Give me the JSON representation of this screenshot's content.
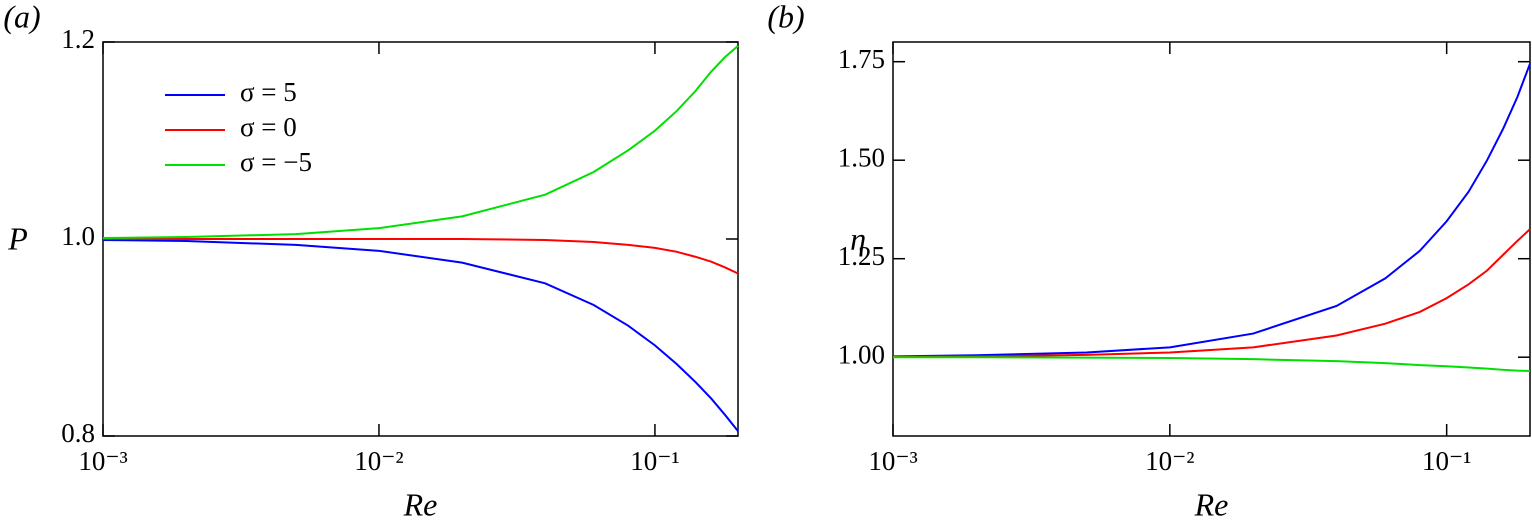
{
  "chart_data": [
    {
      "type": "line",
      "panel_label": "(a)",
      "xlabel": "Re",
      "ylabel": "P",
      "xscale": "log",
      "legend": "upper left",
      "xlim": [
        0.001,
        0.2
      ],
      "ylim": [
        0.8,
        1.2
      ],
      "xticks": [
        {
          "value": 0.001,
          "label": "10⁻³"
        },
        {
          "value": 0.01,
          "label": "10⁻²"
        },
        {
          "value": 0.1,
          "label": "10⁻¹"
        }
      ],
      "yticks": [
        0.8,
        {
          "value": 1,
          "label": "1.0"
        },
        1.2
      ],
      "x": [
        0.001,
        0.002,
        0.005,
        0.01,
        0.02,
        0.04,
        0.06,
        0.08,
        0.1,
        0.12,
        0.14,
        0.16,
        0.18,
        0.2
      ],
      "series": [
        {
          "name": "σ = 5",
          "color": "#0000ff",
          "values": [
            0.999,
            0.998,
            0.994,
            0.988,
            0.976,
            0.955,
            0.933,
            0.912,
            0.892,
            0.873,
            0.855,
            0.838,
            0.821,
            0.805
          ]
        },
        {
          "name": "σ = 0",
          "color": "#ff0000",
          "values": [
            1.0,
            1.0,
            1.0,
            1.0,
            1.0,
            0.999,
            0.997,
            0.994,
            0.991,
            0.987,
            0.982,
            0.977,
            0.971,
            0.965
          ]
        },
        {
          "name": "σ = −5",
          "color": "#00e000",
          "values": [
            1.001,
            1.002,
            1.005,
            1.011,
            1.023,
            1.045,
            1.068,
            1.09,
            1.11,
            1.13,
            1.15,
            1.17,
            1.185,
            1.196
          ]
        }
      ]
    },
    {
      "type": "line",
      "panel_label": "(b)",
      "xlabel": "Re",
      "ylabel": "η",
      "xscale": "log",
      "xlim": [
        0.001,
        0.2
      ],
      "ylim": [
        0.8,
        1.8
      ],
      "xticks": [
        {
          "value": 0.001,
          "label": "10⁻³"
        },
        {
          "value": 0.01,
          "label": "10⁻²"
        },
        {
          "value": 0.1,
          "label": "10⁻¹"
        }
      ],
      "yticks": [
        {
          "value": 1,
          "label": "1.00"
        },
        1.25,
        {
          "value": 1.5,
          "label": "1.50"
        },
        1.75
      ],
      "x": [
        0.001,
        0.002,
        0.005,
        0.01,
        0.02,
        0.04,
        0.06,
        0.08,
        0.1,
        0.12,
        0.14,
        0.16,
        0.18,
        0.2
      ],
      "series": [
        {
          "color": "#0000ff",
          "values": [
            1.002,
            1.005,
            1.012,
            1.025,
            1.06,
            1.13,
            1.2,
            1.27,
            1.345,
            1.42,
            1.5,
            1.58,
            1.66,
            1.745
          ]
        },
        {
          "color": "#ff0000",
          "values": [
            1.001,
            1.002,
            1.006,
            1.012,
            1.025,
            1.055,
            1.085,
            1.115,
            1.15,
            1.185,
            1.22,
            1.26,
            1.295,
            1.325
          ]
        },
        {
          "color": "#00e000",
          "values": [
            1.0,
            1.0,
            0.999,
            0.998,
            0.995,
            0.99,
            0.985,
            0.98,
            0.977,
            0.974,
            0.971,
            0.968,
            0.966,
            0.965
          ]
        }
      ]
    }
  ]
}
